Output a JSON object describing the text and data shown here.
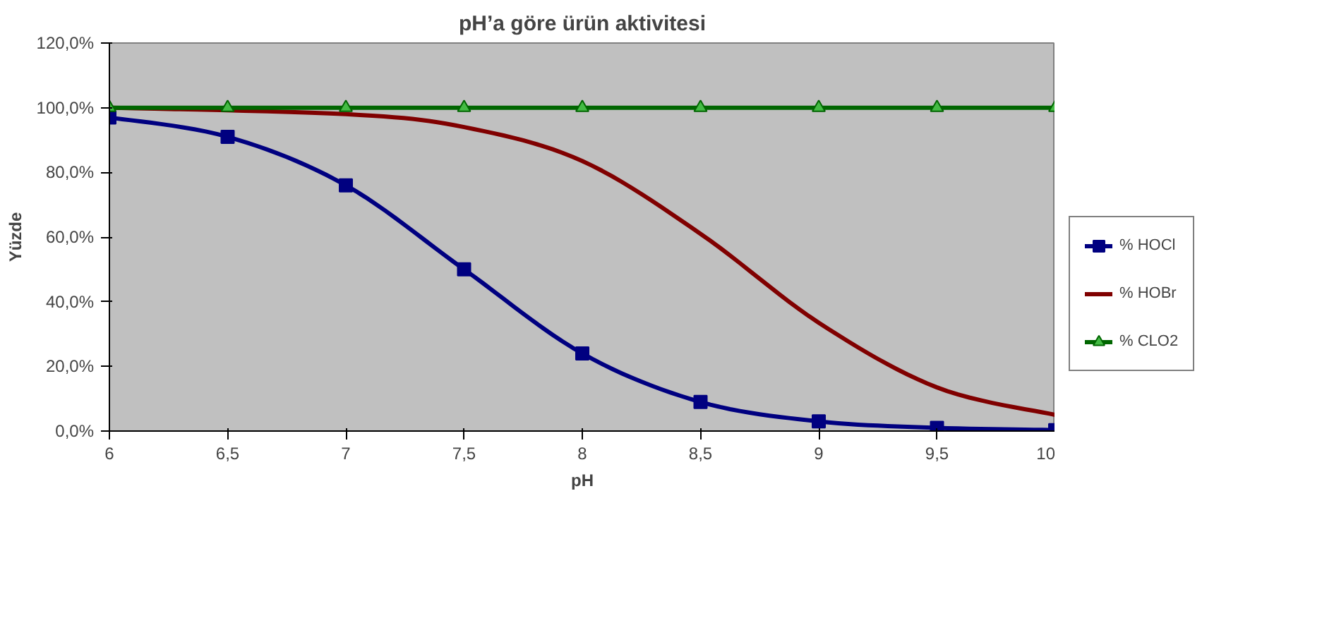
{
  "chart_data": {
    "type": "line",
    "title": "pH’a göre ürün aktivitesi",
    "xlabel": "pH",
    "ylabel": "Yüzde",
    "x": [
      6,
      6.5,
      7,
      7.5,
      8,
      8.5,
      9,
      9.5,
      10
    ],
    "series": [
      {
        "name": "% HOCl",
        "color": "#000080",
        "marker": "square",
        "values": [
          97,
          91,
          76,
          50,
          24,
          9,
          3,
          1,
          0.3
        ]
      },
      {
        "name": "% HOBr",
        "color": "#800000",
        "marker": "none",
        "values": [
          100,
          null,
          98,
          94,
          83.5,
          61,
          33.5,
          13.5,
          5
        ]
      },
      {
        "name": "% CLO2",
        "color": "#006600",
        "marker": "triangle",
        "values": [
          100,
          100,
          100,
          100,
          100,
          100,
          100,
          100,
          100
        ]
      }
    ],
    "xlim": [
      6,
      10
    ],
    "xticks": [
      6,
      {
        "value": 6.5,
        "label": "6,5"
      },
      7,
      {
        "value": 7.5,
        "label": "7,5"
      },
      8,
      {
        "value": 8.5,
        "label": "8,5"
      },
      9,
      {
        "value": 9.5,
        "label": "9,5"
      },
      10
    ],
    "ylim": [
      0,
      120
    ],
    "yticks": [
      {
        "value": 0,
        "label": "0,0%"
      },
      {
        "value": 20,
        "label": "20,0%"
      },
      {
        "value": 40,
        "label": "40,0%"
      },
      {
        "value": 60,
        "label": "60,0%"
      },
      {
        "value": 80,
        "label": "80,0%"
      },
      {
        "value": 100,
        "label": "100,0%"
      },
      {
        "value": 120,
        "label": "120,0%"
      }
    ],
    "grid": false,
    "legend": "right",
    "line_style": "solid"
  }
}
